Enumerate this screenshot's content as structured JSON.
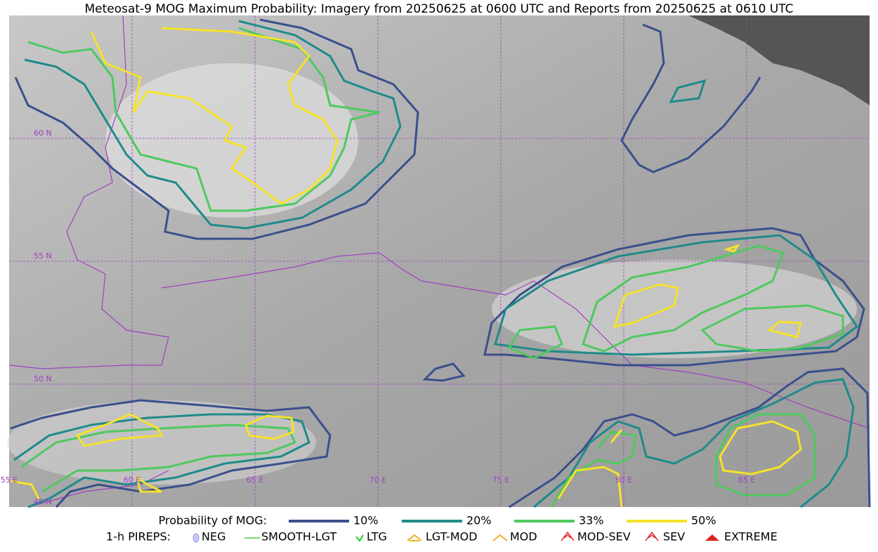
{
  "header": {
    "title": "Meteosat-9 MOG Maximum Probability: Imagery from 20250625 at 0600 UTC and Reports from 20250625 at 0610 UTC"
  },
  "map": {
    "lat_labels": [
      "60 N",
      "55 N",
      "50 N",
      "45 N"
    ],
    "lon_labels": [
      "55 E",
      "60 E",
      "65 E",
      "70 E",
      "75 E",
      "80 E",
      "85 E"
    ]
  },
  "legend": {
    "probability": {
      "label": "Probability of MOG:",
      "items": [
        "10%",
        "20%",
        "33%",
        "50%"
      ]
    },
    "pireps": {
      "label": "1-h PIREPS:",
      "items": [
        "NEG",
        "SMOOTH-LGT",
        "LTG",
        "LGT-MOD",
        "MOD",
        "MOD-SEV",
        "SEV",
        "EXTREME"
      ]
    }
  }
}
